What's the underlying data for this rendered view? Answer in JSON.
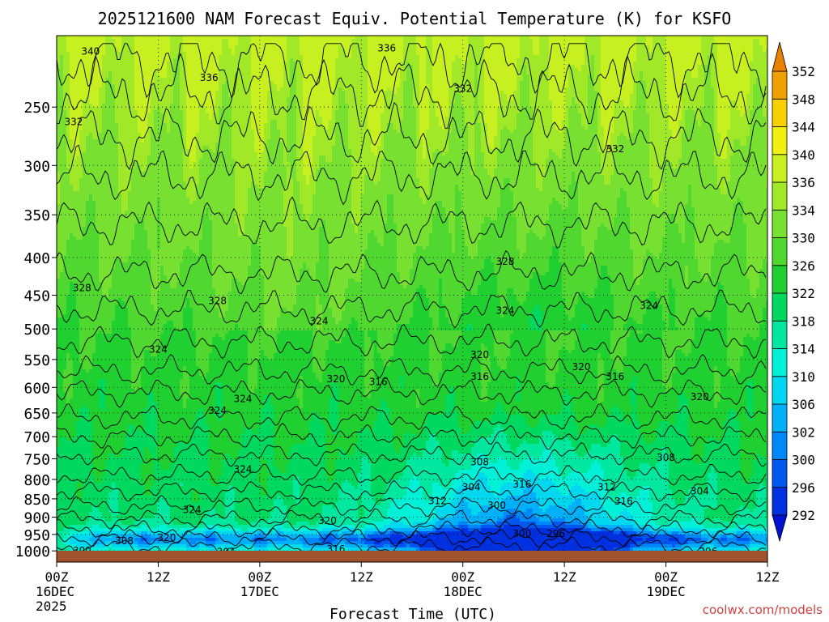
{
  "chart_data": {
    "type": "heatmap",
    "title": "2025121600 NAM Forecast Equiv. Potential Temperature (K) for KSFO",
    "xlabel": "Forecast Time (UTC)",
    "ylabel": "",
    "credit": "coolwx.com/models",
    "x_hours": [
      0,
      12,
      24,
      36,
      48,
      60,
      72,
      84
    ],
    "x_tick_labels": [
      [
        "00Z",
        "16DEC",
        "2025"
      ],
      [
        "12Z"
      ],
      [
        "00Z",
        "17DEC"
      ],
      [
        "12Z"
      ],
      [
        "00Z",
        "18DEC"
      ],
      [
        "12Z"
      ],
      [
        "00Z",
        "19DEC"
      ],
      [
        "12Z"
      ]
    ],
    "xlim": [
      0,
      84
    ],
    "y_ticks": [
      250,
      300,
      350,
      400,
      450,
      500,
      550,
      600,
      650,
      700,
      750,
      800,
      850,
      900,
      950,
      1000
    ],
    "ylim": [
      200,
      1020
    ],
    "y_scale": "log",
    "grid": true,
    "colorbar": {
      "levels": [
        292,
        296,
        300,
        302,
        306,
        310,
        314,
        318,
        322,
        326,
        330,
        334,
        336,
        340,
        344,
        348,
        352
      ],
      "colors": [
        "#0030e0",
        "#0058f0",
        "#0088f8",
        "#00b0f8",
        "#00d8f0",
        "#00f0d8",
        "#00e8a0",
        "#00d860",
        "#20d030",
        "#50d830",
        "#78e030",
        "#a0e828",
        "#c8f020",
        "#f0f010",
        "#f8d000",
        "#f0a000",
        "#e88000"
      ]
    },
    "contour_labels": [
      {
        "text": "340",
        "hour": 4,
        "p": 210
      },
      {
        "text": "336",
        "hour": 39,
        "p": 208
      },
      {
        "text": "336",
        "hour": 18,
        "p": 228
      },
      {
        "text": "332",
        "hour": 48,
        "p": 236
      },
      {
        "text": "332",
        "hour": 2,
        "p": 262
      },
      {
        "text": "332",
        "hour": 66,
        "p": 285
      },
      {
        "text": "328",
        "hour": 53,
        "p": 405
      },
      {
        "text": "328",
        "hour": 3,
        "p": 440
      },
      {
        "text": "328",
        "hour": 19,
        "p": 458
      },
      {
        "text": "324",
        "hour": 31,
        "p": 488
      },
      {
        "text": "324",
        "hour": 53,
        "p": 472
      },
      {
        "text": "324",
        "hour": 70,
        "p": 465
      },
      {
        "text": "324",
        "hour": 12,
        "p": 533
      },
      {
        "text": "320",
        "hour": 50,
        "p": 542
      },
      {
        "text": "320",
        "hour": 62,
        "p": 563
      },
      {
        "text": "320",
        "hour": 33,
        "p": 585
      },
      {
        "text": "316",
        "hour": 38,
        "p": 590
      },
      {
        "text": "316",
        "hour": 50,
        "p": 580
      },
      {
        "text": "316",
        "hour": 66,
        "p": 580
      },
      {
        "text": "320",
        "hour": 76,
        "p": 618
      },
      {
        "text": "324",
        "hour": 22,
        "p": 622
      },
      {
        "text": "324",
        "hour": 19,
        "p": 645
      },
      {
        "text": "308",
        "hour": 50,
        "p": 758
      },
      {
        "text": "308",
        "hour": 72,
        "p": 747
      },
      {
        "text": "324",
        "hour": 22,
        "p": 775
      },
      {
        "text": "304",
        "hour": 49,
        "p": 820
      },
      {
        "text": "316",
        "hour": 55,
        "p": 812
      },
      {
        "text": "312",
        "hour": 65,
        "p": 820
      },
      {
        "text": "304",
        "hour": 76,
        "p": 830
      },
      {
        "text": "312",
        "hour": 45,
        "p": 855
      },
      {
        "text": "300",
        "hour": 52,
        "p": 868
      },
      {
        "text": "316",
        "hour": 67,
        "p": 857
      },
      {
        "text": "324",
        "hour": 16,
        "p": 880
      },
      {
        "text": "320",
        "hour": 32,
        "p": 910
      },
      {
        "text": "300",
        "hour": 55,
        "p": 948
      },
      {
        "text": "296",
        "hour": 59,
        "p": 948
      },
      {
        "text": "320",
        "hour": 13,
        "p": 960
      },
      {
        "text": "308",
        "hour": 8,
        "p": 970
      },
      {
        "text": "316",
        "hour": 33,
        "p": 995
      },
      {
        "text": "300",
        "hour": 3,
        "p": 1000
      },
      {
        "text": "304",
        "hour": 20,
        "p": 1003
      },
      {
        "text": "296",
        "hour": 77,
        "p": 1002
      }
    ]
  }
}
